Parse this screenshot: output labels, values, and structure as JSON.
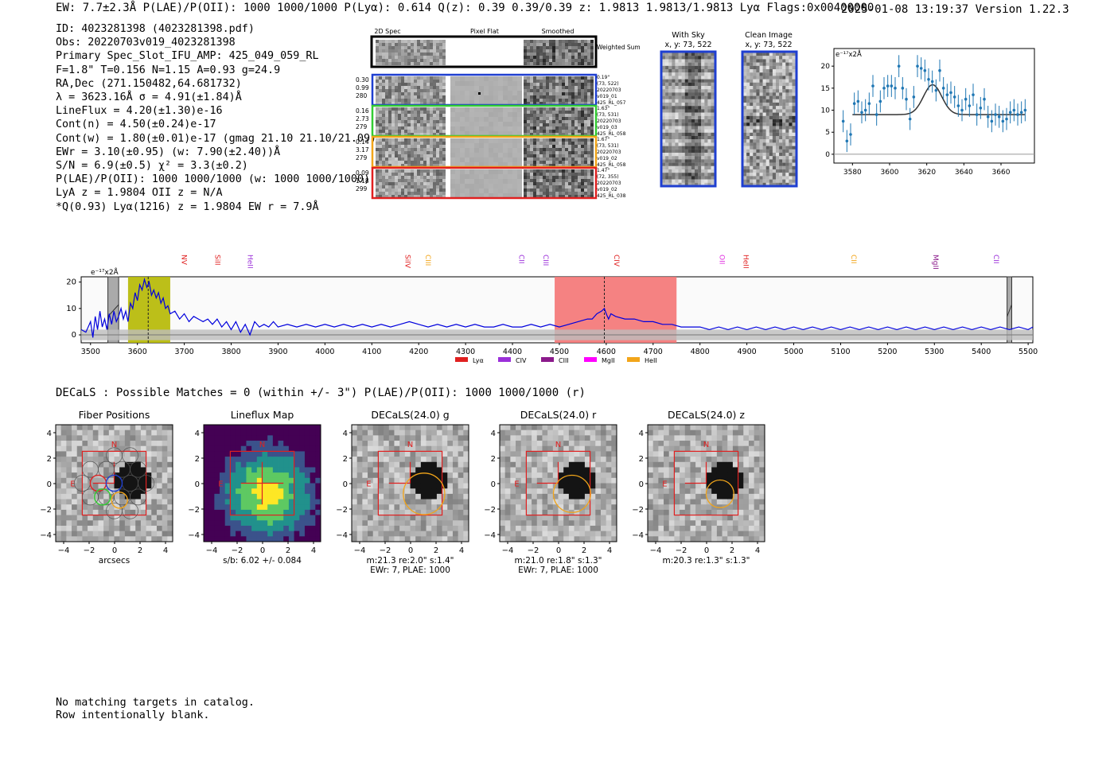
{
  "header": {
    "summary": "EW: 7.7±2.3Å  P(LAE)/P(OII): 1000 1000/1000  P(Lyα): 0.614  Q(z): 0.39 0.39/0.39  z: 1.9813 1.9813/1.9813 Lyα  Flags:0x00400000",
    "timestamp_version": "2025-01-08 13:19:37  Version 1.22.3"
  },
  "info": {
    "lines": [
      "ID: 4023281398 (4023281398.pdf)",
      "Obs: 20220703v019_4023281398",
      "Primary Spec_Slot_IFU_AMP: 425_049_059_RL",
      "F=1.8\"  T=0.156  N=1.15  A=0.93  g=24.9",
      "RA,Dec (271.150482,64.681732)",
      "λ = 3623.16Å  σ = 4.91(±1.84)Å",
      "LineFlux = 4.20(±1.30)e-16",
      "Cont(n) = 4.50(±0.24)e-17",
      "Cont(w) = 1.80(±0.01)e-17 (gmag 21.10 21.10/21.09)",
      "EWr = 3.10(±0.95) (w: 7.90(±2.40))Å",
      "S/N = 6.9(±0.5)  χ² = 3.3(±0.2)",
      "P(LAE)/P(OII): 1000 1000/1000 (w: 1000 1000/1000)",
      "LyA z = 1.9804  OII z = N/A",
      "*Q(0.93) Lyα(1216) z = 1.9804  EW r = 7.9Å"
    ]
  },
  "cutouts": {
    "headers": [
      "2D Spec",
      "Pixel Flat",
      "Smoothed"
    ],
    "weighted_label": "Weighted Sum",
    "rows": [
      {
        "left": [
          "0.30",
          "0.99",
          "280"
        ],
        "right": [
          "0.19\"",
          "(73, 522)",
          "20220703",
          "v019_01",
          "425_RL_057"
        ],
        "color": "#1f3fd0"
      },
      {
        "left": [
          "0.16",
          "2.73",
          "279"
        ],
        "right": [
          "1.63\"",
          "(73, 531)",
          "20220703",
          "v019_03",
          "425_RL_058"
        ],
        "color": "#33cc33"
      },
      {
        "left": [
          "0.14",
          "3.17",
          "279"
        ],
        "right": [
          "1.67\"",
          "(73, 531)",
          "20220703",
          "v019_02",
          "425_RL_058"
        ],
        "color": "#f2a51a"
      },
      {
        "left": [
          "0.09",
          "1.18",
          "299"
        ],
        "right": [
          "1.47\"",
          "(72, 355)",
          "20220703",
          "v019_02",
          "425_RL_038"
        ],
        "color": "#e02020"
      }
    ],
    "with_sky": {
      "title": "With Sky",
      "coords": "x, y: 73, 522"
    },
    "clean": {
      "title": "Clean Image",
      "coords": "x, y: 73, 522"
    }
  },
  "chart_data": [
    {
      "type": "scatter",
      "title": "",
      "ylabel": "e⁻¹⁷x2Å",
      "xlim": [
        3570,
        3678
      ],
      "ylim": [
        -2,
        24
      ],
      "xticks": [
        "3580",
        "3600",
        "3620",
        "3640",
        "3660"
      ],
      "yticks": [
        "0",
        "5",
        "10",
        "15",
        "20"
      ],
      "x": [
        3575,
        3577,
        3579,
        3581,
        3583,
        3585,
        3587,
        3589,
        3591,
        3593,
        3595,
        3597,
        3599,
        3601,
        3603,
        3605,
        3607,
        3609,
        3611,
        3613,
        3615,
        3617,
        3619,
        3621,
        3623,
        3625,
        3627,
        3629,
        3631,
        3633,
        3635,
        3637,
        3639,
        3641,
        3643,
        3645,
        3647,
        3649,
        3651,
        3653,
        3655,
        3657,
        3659,
        3661,
        3663,
        3665,
        3667,
        3669,
        3671,
        3673
      ],
      "y": [
        7.5,
        3.0,
        4.5,
        11.5,
        12.0,
        9.5,
        10.0,
        11.5,
        15.5,
        9.0,
        12.0,
        15.0,
        15.5,
        15.5,
        15.0,
        20.0,
        15.0,
        12.5,
        8.0,
        13.0,
        20.0,
        19.5,
        19.0,
        17.0,
        16.5,
        14.5,
        19.0,
        15.0,
        13.5,
        14.0,
        13.0,
        11.0,
        10.0,
        12.5,
        11.0,
        13.5,
        9.0,
        10.5,
        12.5,
        8.5,
        7.5,
        9.0,
        8.5,
        7.5,
        8.0,
        9.5,
        10.0,
        9.0,
        9.5,
        10.0
      ],
      "err": [
        2.5,
        2.5,
        2.5,
        2.5,
        2.5,
        2.5,
        2.5,
        2.5,
        2.5,
        2.5,
        2.5,
        2.5,
        2.5,
        2.5,
        2.5,
        2.5,
        2.5,
        2.5,
        2.5,
        2.5,
        2.5,
        2.5,
        2.5,
        2.5,
        2.5,
        2.5,
        2.5,
        2.5,
        2.5,
        2.5,
        2.5,
        2.5,
        2.5,
        2.5,
        2.5,
        2.5,
        2.5,
        2.5,
        2.5,
        2.5,
        2.5,
        2.5,
        2.5,
        2.5,
        2.5,
        2.5,
        2.5,
        2.5,
        2.5,
        2.5
      ],
      "model": {
        "baseline": 9.0,
        "amplitude": 6.8,
        "center": 3623.16,
        "sigma": 4.91
      },
      "color": "#1f77b4"
    },
    {
      "type": "line",
      "title": "",
      "ylabel": "e⁻¹⁷x2Å",
      "xlim": [
        3480,
        5510
      ],
      "ylim": [
        -3,
        22
      ],
      "xticks": [
        "3500",
        "3600",
        "3700",
        "3800",
        "3900",
        "4000",
        "4100",
        "4200",
        "4300",
        "4400",
        "4500",
        "4600",
        "4700",
        "4800",
        "4900",
        "5000",
        "5100",
        "5200",
        "5300",
        "5400",
        "5500"
      ],
      "yticks": [
        "0",
        "10",
        "20"
      ],
      "highlights": [
        {
          "from": 3580,
          "to": 3670,
          "color": "#b5b800"
        },
        {
          "from": 4490,
          "to": 4750,
          "color": "#f47474"
        }
      ],
      "hatched": [
        {
          "from": 3537,
          "to": 3560
        },
        {
          "from": 5455,
          "to": 5465
        }
      ],
      "dashed_lines": [
        3623,
        4596
      ],
      "lines": [
        {
          "name": "NV",
          "x": 3695,
          "color": "#e02020"
        },
        {
          "name": "SiII",
          "x": 3766,
          "color": "#e02020"
        },
        {
          "name": "HeII",
          "x": 3836,
          "color": "#9b30d9"
        },
        {
          "name": "SiIV",
          "x": 4172,
          "color": "#e02020"
        },
        {
          "name": "CIII",
          "x": 4215,
          "color": "#f2a51a"
        },
        {
          "name": "CII",
          "x": 4414,
          "color": "#9b30d9"
        },
        {
          "name": "CIII",
          "x": 4466,
          "color": "#9b30d9"
        },
        {
          "name": "CIV",
          "x": 4617,
          "color": "#e02020"
        },
        {
          "name": "OII",
          "x": 4842,
          "color": "#e030e0"
        },
        {
          "name": "HeII",
          "x": 4893,
          "color": "#e02020"
        },
        {
          "name": "CII",
          "x": 5123,
          "color": "#f2a51a"
        },
        {
          "name": "MgII",
          "x": 5298,
          "color": "#8b1a8b"
        },
        {
          "name": "CII",
          "x": 5427,
          "color": "#9b30d9"
        }
      ],
      "spectrum": [
        [
          3480,
          2
        ],
        [
          3490,
          1
        ],
        [
          3500,
          5
        ],
        [
          3505,
          -1
        ],
        [
          3510,
          7
        ],
        [
          3515,
          2
        ],
        [
          3520,
          9
        ],
        [
          3525,
          3
        ],
        [
          3530,
          6
        ],
        [
          3535,
          2
        ],
        [
          3540,
          8
        ],
        [
          3545,
          4
        ],
        [
          3550,
          9
        ],
        [
          3555,
          5
        ],
        [
          3560,
          7
        ],
        [
          3565,
          10
        ],
        [
          3570,
          6
        ],
        [
          3575,
          9
        ],
        [
          3580,
          5
        ],
        [
          3585,
          12
        ],
        [
          3590,
          10
        ],
        [
          3595,
          16
        ],
        [
          3600,
          13
        ],
        [
          3605,
          19
        ],
        [
          3610,
          17
        ],
        [
          3615,
          21
        ],
        [
          3620,
          18
        ],
        [
          3625,
          20
        ],
        [
          3630,
          15
        ],
        [
          3635,
          17
        ],
        [
          3640,
          14
        ],
        [
          3645,
          16
        ],
        [
          3650,
          12
        ],
        [
          3655,
          14
        ],
        [
          3660,
          10
        ],
        [
          3665,
          11
        ],
        [
          3670,
          8
        ],
        [
          3680,
          9
        ],
        [
          3690,
          6
        ],
        [
          3700,
          8
        ],
        [
          3710,
          5
        ],
        [
          3720,
          7
        ],
        [
          3730,
          6
        ],
        [
          3740,
          5
        ],
        [
          3750,
          6
        ],
        [
          3760,
          4
        ],
        [
          3770,
          6
        ],
        [
          3780,
          3
        ],
        [
          3790,
          5
        ],
        [
          3800,
          2
        ],
        [
          3810,
          5
        ],
        [
          3820,
          1
        ],
        [
          3830,
          4
        ],
        [
          3840,
          0
        ],
        [
          3850,
          5
        ],
        [
          3860,
          3
        ],
        [
          3870,
          4
        ],
        [
          3880,
          3
        ],
        [
          3890,
          5
        ],
        [
          3900,
          3
        ],
        [
          3920,
          4
        ],
        [
          3940,
          3
        ],
        [
          3960,
          4
        ],
        [
          3980,
          3
        ],
        [
          4000,
          4
        ],
        [
          4020,
          3
        ],
        [
          4040,
          4
        ],
        [
          4060,
          3
        ],
        [
          4080,
          4
        ],
        [
          4100,
          3
        ],
        [
          4120,
          4
        ],
        [
          4140,
          3
        ],
        [
          4160,
          4
        ],
        [
          4180,
          5
        ],
        [
          4200,
          4
        ],
        [
          4220,
          3
        ],
        [
          4240,
          4
        ],
        [
          4260,
          3
        ],
        [
          4280,
          4
        ],
        [
          4300,
          3
        ],
        [
          4320,
          4
        ],
        [
          4340,
          3
        ],
        [
          4360,
          3
        ],
        [
          4380,
          4
        ],
        [
          4400,
          3
        ],
        [
          4420,
          3
        ],
        [
          4440,
          4
        ],
        [
          4460,
          3
        ],
        [
          4480,
          4
        ],
        [
          4500,
          3
        ],
        [
          4520,
          4
        ],
        [
          4540,
          5
        ],
        [
          4560,
          6
        ],
        [
          4570,
          6
        ],
        [
          4580,
          8
        ],
        [
          4590,
          9
        ],
        [
          4596,
          10
        ],
        [
          4600,
          8
        ],
        [
          4605,
          6
        ],
        [
          4610,
          8
        ],
        [
          4620,
          7
        ],
        [
          4640,
          6
        ],
        [
          4660,
          6
        ],
        [
          4680,
          5
        ],
        [
          4700,
          5
        ],
        [
          4720,
          4
        ],
        [
          4740,
          4
        ],
        [
          4760,
          3
        ],
        [
          4780,
          3
        ],
        [
          4800,
          3
        ],
        [
          4820,
          2
        ],
        [
          4840,
          3
        ],
        [
          4860,
          2
        ],
        [
          4880,
          3
        ],
        [
          4900,
          2
        ],
        [
          4920,
          3
        ],
        [
          4940,
          2
        ],
        [
          4960,
          3
        ],
        [
          4980,
          2
        ],
        [
          5000,
          3
        ],
        [
          5020,
          2
        ],
        [
          5040,
          3
        ],
        [
          5060,
          2
        ],
        [
          5080,
          3
        ],
        [
          5100,
          2
        ],
        [
          5120,
          3
        ],
        [
          5140,
          2
        ],
        [
          5160,
          3
        ],
        [
          5180,
          2
        ],
        [
          5200,
          3
        ],
        [
          5220,
          2
        ],
        [
          5240,
          3
        ],
        [
          5260,
          2
        ],
        [
          5280,
          3
        ],
        [
          5300,
          2
        ],
        [
          5320,
          3
        ],
        [
          5340,
          2
        ],
        [
          5360,
          3
        ],
        [
          5380,
          2
        ],
        [
          5400,
          3
        ],
        [
          5420,
          2
        ],
        [
          5440,
          3
        ],
        [
          5460,
          2
        ],
        [
          5480,
          3
        ],
        [
          5500,
          2
        ],
        [
          5510,
          3
        ]
      ],
      "color": "#0000dd"
    }
  ],
  "legend": [
    {
      "label": "Lyα",
      "color": "#e02020"
    },
    {
      "label": "CIV",
      "color": "#9b30d9"
    },
    {
      "label": "CIII",
      "color": "#8b1a8b"
    },
    {
      "label": "MgII",
      "color": "#ff00ff"
    },
    {
      "label": "HeII",
      "color": "#f2a51a"
    }
  ],
  "decals": {
    "line": "DECaLS : Possible Matches = 0 (within +/- 3\")  P(LAE)/P(OII): 1000 1000/1000 (r)",
    "axis_ticks": [
      "4",
      "2",
      "0",
      "−2",
      "−4"
    ],
    "panels": [
      {
        "title": "Fiber Positions",
        "caption": [
          "arcsecs"
        ],
        "kind": "fiber"
      },
      {
        "title": "Lineflux Map",
        "caption": [
          "s/b: 6.02 +/- 0.084"
        ],
        "kind": "lineflux"
      },
      {
        "title": "DECaLS(24.0) g",
        "caption": [
          "m:21.3  re:2.0\"  s:1.4\"",
          "EWr: 7, PLAE: 1000"
        ],
        "kind": "decals",
        "ellipse_r": 1.95
      },
      {
        "title": "DECaLS(24.0) r",
        "caption": [
          "m:21.0  re:1.8\"  s:1.3\"",
          "EWr: 7, PLAE: 1000"
        ],
        "kind": "decals",
        "ellipse_r": 1.75
      },
      {
        "title": "DECaLS(24.0) z",
        "caption": [
          "m:20.3  re:1.3\"  s:1.3\""
        ],
        "kind": "decals",
        "ellipse_r": 1.3
      }
    ],
    "north": "N",
    "east": "E"
  },
  "footer": {
    "lines": [
      "No matching targets in catalog.",
      "Row intentionally blank."
    ]
  }
}
